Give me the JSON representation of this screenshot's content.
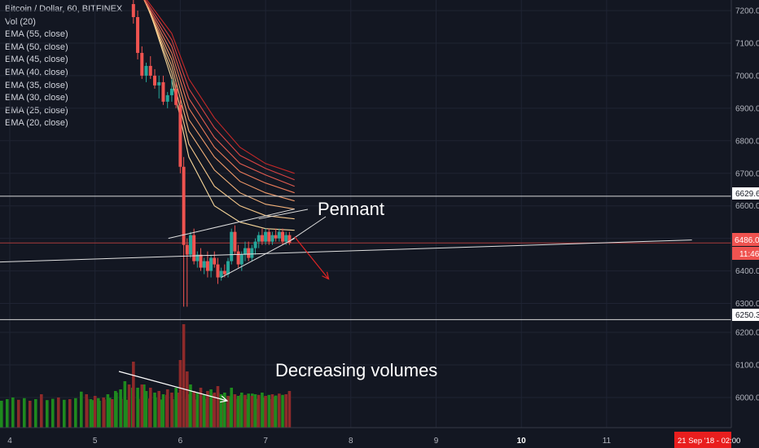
{
  "legend": {
    "title": "Bitcoin / Dollar, 60, BITFINEX",
    "vol": "Vol (20)",
    "emas": [
      "EMA (55, close)",
      "EMA (50, close)",
      "EMA (45, close)",
      "EMA (40, close)",
      "EMA (35, close)",
      "EMA (30, close)",
      "EMA (25, close)",
      "EMA (20, close)"
    ]
  },
  "annotations": {
    "pennant": "Pennant",
    "volumes": "Decreasing volumes"
  },
  "badges": {
    "level_upper": "6629.6",
    "price": "6486.0",
    "countdown": "11:46",
    "level_lower": "6250.3",
    "date": "21 Sep '18 - 02:00"
  },
  "colors": {
    "background": "#131722",
    "up": "#26a69a",
    "down": "#ef5350",
    "vol_up": "#1e8a1e",
    "vol_down": "#8e2a2a",
    "price_badge": "#ef5350",
    "date_badge": "#e91e1e"
  },
  "chart_data": {
    "type": "candlestick",
    "symbol": "Bitcoin / Dollar, 60, BITFINEX",
    "x_ticks": [
      "4",
      "5",
      "6",
      "7",
      "8",
      "9",
      "10",
      "11"
    ],
    "x_tick_values": [
      4,
      5,
      6,
      7,
      8,
      9,
      10,
      11
    ],
    "price_ticks": [
      7200,
      7100,
      7000,
      6900,
      6800,
      6700,
      6600,
      6500,
      6400,
      6300
    ],
    "price_tick_labels": [
      "7200.0",
      "7100.0",
      "7000.0",
      "6900.0",
      "6800.0",
      "6700.0",
      "6600.0",
      "6500.0",
      "6400.0",
      "6300.0"
    ],
    "volume_ticks": [
      6200,
      6100,
      6000
    ],
    "volume_tick_labels": [
      "6200.0",
      "6100.0",
      "6000.0"
    ],
    "horizontal_levels": [
      6629.6,
      6486.0,
      6250.3
    ],
    "ema_periods": [
      55,
      50,
      45,
      40,
      35,
      30,
      25,
      20
    ],
    "ema_colors": [
      "#c62828",
      "#d84343",
      "#e35c50",
      "#ea7a5a",
      "#f09a6a",
      "#f3b27a",
      "#f5c78a",
      "#f7d79a"
    ],
    "ema_start": [
      [
        [
          5.5,
          7270
        ],
        [
          5.9,
          7130
        ],
        [
          6.1,
          6990
        ],
        [
          6.4,
          6870
        ],
        [
          6.7,
          6780
        ],
        [
          7.0,
          6730
        ],
        [
          7.34,
          6700
        ]
      ],
      [
        [
          5.52,
          7260
        ],
        [
          5.9,
          7110
        ],
        [
          6.1,
          6960
        ],
        [
          6.4,
          6840
        ],
        [
          6.7,
          6755
        ],
        [
          7.0,
          6715
        ],
        [
          7.34,
          6680
        ]
      ],
      [
        [
          5.54,
          7250
        ],
        [
          5.9,
          7090
        ],
        [
          6.1,
          6930
        ],
        [
          6.4,
          6810
        ],
        [
          6.7,
          6730
        ],
        [
          7.0,
          6695
        ],
        [
          7.34,
          6660
        ]
      ],
      [
        [
          5.56,
          7240
        ],
        [
          5.9,
          7070
        ],
        [
          6.1,
          6900
        ],
        [
          6.4,
          6780
        ],
        [
          6.7,
          6705
        ],
        [
          7.0,
          6670
        ],
        [
          7.34,
          6640
        ]
      ],
      [
        [
          5.58,
          7230
        ],
        [
          5.9,
          7050
        ],
        [
          6.1,
          6865
        ],
        [
          6.4,
          6750
        ],
        [
          6.7,
          6675
        ],
        [
          7.0,
          6640
        ],
        [
          7.34,
          6615
        ]
      ],
      [
        [
          5.6,
          7220
        ],
        [
          5.9,
          7030
        ],
        [
          6.1,
          6830
        ],
        [
          6.4,
          6710
        ],
        [
          6.7,
          6640
        ],
        [
          7.0,
          6605
        ],
        [
          7.34,
          6590
        ]
      ],
      [
        [
          5.62,
          7210
        ],
        [
          5.9,
          7010
        ],
        [
          6.1,
          6790
        ],
        [
          6.4,
          6660
        ],
        [
          6.7,
          6600
        ],
        [
          7.0,
          6570
        ],
        [
          7.34,
          6560
        ]
      ],
      [
        [
          5.64,
          7200
        ],
        [
          5.9,
          6990
        ],
        [
          6.1,
          6750
        ],
        [
          6.4,
          6600
        ],
        [
          6.7,
          6550
        ],
        [
          7.0,
          6530
        ],
        [
          7.34,
          6525
        ]
      ]
    ],
    "candles": [
      [
        5.45,
        7220,
        7250,
        7160,
        7180
      ],
      [
        5.5,
        7180,
        7200,
        7050,
        7070
      ],
      [
        5.55,
        7070,
        7090,
        6990,
        7000
      ],
      [
        5.6,
        7000,
        7040,
        6980,
        7030
      ],
      [
        5.65,
        7030,
        7060,
        6990,
        7000
      ],
      [
        5.7,
        7000,
        7020,
        6960,
        6970
      ],
      [
        5.75,
        6970,
        7000,
        6930,
        6980
      ],
      [
        5.8,
        6980,
        7000,
        6910,
        6920
      ],
      [
        5.85,
        6920,
        6950,
        6900,
        6940
      ],
      [
        5.9,
        6940,
        6990,
        6920,
        6960
      ],
      [
        5.95,
        6960,
        6980,
        6900,
        6910
      ],
      [
        6.0,
        6910,
        6930,
        6700,
        6720
      ],
      [
        6.04,
        6720,
        6750,
        6290,
        6480
      ],
      [
        6.08,
        6480,
        6500,
        6290,
        6450
      ],
      [
        6.12,
        6450,
        6520,
        6440,
        6510
      ],
      [
        6.16,
        6510,
        6530,
        6420,
        6430
      ],
      [
        6.2,
        6430,
        6460,
        6410,
        6450
      ],
      [
        6.24,
        6450,
        6470,
        6400,
        6410
      ],
      [
        6.28,
        6410,
        6440,
        6390,
        6430
      ],
      [
        6.32,
        6430,
        6460,
        6380,
        6400
      ],
      [
        6.36,
        6400,
        6450,
        6380,
        6440
      ],
      [
        6.4,
        6440,
        6460,
        6410,
        6420
      ],
      [
        6.44,
        6420,
        6440,
        6360,
        6380
      ],
      [
        6.48,
        6380,
        6410,
        6370,
        6400
      ],
      [
        6.52,
        6400,
        6420,
        6380,
        6390
      ],
      [
        6.56,
        6390,
        6440,
        6380,
        6430
      ],
      [
        6.6,
        6430,
        6530,
        6420,
        6520
      ],
      [
        6.64,
        6520,
        6540,
        6450,
        6460
      ],
      [
        6.68,
        6460,
        6480,
        6410,
        6420
      ],
      [
        6.72,
        6420,
        6460,
        6400,
        6450
      ],
      [
        6.76,
        6450,
        6490,
        6430,
        6470
      ],
      [
        6.8,
        6470,
        6490,
        6430,
        6440
      ],
      [
        6.84,
        6440,
        6480,
        6430,
        6470
      ],
      [
        6.88,
        6470,
        6500,
        6450,
        6490
      ],
      [
        6.92,
        6490,
        6520,
        6470,
        6510
      ],
      [
        6.96,
        6510,
        6530,
        6480,
        6490
      ],
      [
        7.0,
        6490,
        6530,
        6480,
        6520
      ],
      [
        7.04,
        6520,
        6530,
        6480,
        6490
      ],
      [
        7.08,
        6490,
        6520,
        6480,
        6510
      ],
      [
        7.12,
        6510,
        6530,
        6490,
        6500
      ],
      [
        7.16,
        6500,
        6530,
        6490,
        6520
      ],
      [
        7.2,
        6520,
        6530,
        6480,
        6490
      ],
      [
        7.24,
        6490,
        6520,
        6480,
        6510
      ],
      [
        7.28,
        6510,
        6520,
        6480,
        6486
      ]
    ],
    "volumes": [
      [
        4.9,
        6010,
        0
      ],
      [
        4.95,
        5995,
        1
      ],
      [
        5.0,
        6005,
        0
      ],
      [
        5.05,
        5990,
        1
      ],
      [
        5.1,
        6000,
        0
      ],
      [
        5.15,
        6010,
        1
      ],
      [
        5.2,
        5995,
        0
      ],
      [
        5.25,
        6015,
        1
      ],
      [
        5.3,
        6025,
        1
      ],
      [
        5.35,
        6050,
        1
      ],
      [
        5.4,
        6040,
        0
      ],
      [
        5.45,
        6110,
        0
      ],
      [
        5.5,
        6030,
        1
      ],
      [
        5.55,
        6040,
        0
      ],
      [
        5.6,
        6020,
        1
      ],
      [
        5.65,
        6030,
        0
      ],
      [
        5.7,
        6015,
        1
      ],
      [
        5.75,
        6020,
        0
      ],
      [
        5.8,
        6010,
        1
      ],
      [
        5.85,
        6025,
        0
      ],
      [
        5.9,
        6015,
        0
      ],
      [
        5.95,
        6030,
        1
      ],
      [
        6.0,
        6115,
        0
      ],
      [
        6.04,
        6225,
        0
      ],
      [
        6.08,
        6080,
        0
      ],
      [
        6.12,
        6040,
        1
      ],
      [
        6.16,
        6020,
        0
      ],
      [
        6.2,
        6015,
        1
      ],
      [
        6.24,
        6030,
        0
      ],
      [
        6.28,
        6010,
        1
      ],
      [
        6.32,
        6020,
        0
      ],
      [
        6.36,
        6025,
        1
      ],
      [
        6.4,
        6015,
        0
      ],
      [
        6.44,
        6035,
        0
      ],
      [
        6.48,
        6010,
        1
      ],
      [
        6.52,
        6015,
        1
      ],
      [
        6.56,
        6005,
        0
      ],
      [
        6.6,
        6030,
        1
      ],
      [
        6.64,
        6010,
        0
      ],
      [
        6.68,
        6005,
        1
      ],
      [
        6.72,
        6015,
        1
      ],
      [
        6.76,
        6008,
        0
      ],
      [
        6.8,
        6012,
        1
      ],
      [
        6.84,
        6005,
        0
      ],
      [
        6.88,
        6010,
        1
      ],
      [
        6.92,
        6008,
        0
      ],
      [
        6.96,
        6015,
        1
      ],
      [
        7.0,
        6005,
        0
      ],
      [
        7.04,
        6008,
        1
      ],
      [
        7.08,
        6010,
        0
      ],
      [
        7.12,
        6006,
        1
      ],
      [
        7.16,
        6012,
        0
      ],
      [
        7.2,
        6008,
        1
      ],
      [
        7.24,
        6010,
        0
      ],
      [
        7.28,
        6020,
        0
      ]
    ],
    "volume_scroll_left": [
      [
        0.0,
        5990,
        1
      ],
      [
        0.1,
        5995,
        1
      ],
      [
        0.2,
        6000,
        1
      ],
      [
        0.3,
        5993,
        0
      ],
      [
        0.4,
        5998,
        1
      ],
      [
        0.5,
        5990,
        0
      ],
      [
        0.6,
        5995,
        1
      ],
      [
        0.7,
        6010,
        0
      ],
      [
        0.8,
        5992,
        1
      ],
      [
        0.9,
        5996,
        1
      ],
      [
        1.0,
        6000,
        0
      ],
      [
        1.1,
        5993,
        1
      ],
      [
        1.2,
        5995,
        0
      ],
      [
        1.3,
        5998,
        1
      ],
      [
        1.4,
        6018,
        1
      ],
      [
        1.5,
        5996,
        0
      ],
      [
        1.6,
        5992,
        1
      ],
      [
        1.7,
        5998,
        1
      ],
      [
        1.8,
        5994,
        0
      ],
      [
        1.9,
        5999,
        1
      ],
      [
        2.0,
        6020,
        1
      ],
      [
        2.1,
        5996,
        0
      ],
      [
        2.2,
        5993,
        1
      ],
      [
        2.3,
        6030,
        1
      ],
      [
        2.4,
        5996,
        0
      ],
      [
        2.5,
        6040,
        1
      ],
      [
        2.6,
        5997,
        0
      ],
      [
        2.7,
        6000,
        1
      ],
      [
        2.8,
        5994,
        1
      ],
      [
        2.9,
        6008,
        0
      ],
      [
        3.0,
        5995,
        1
      ],
      [
        3.1,
        6015,
        0
      ],
      [
        3.2,
        5996,
        1
      ],
      [
        3.3,
        6010,
        1
      ],
      [
        3.4,
        5994,
        0
      ],
      [
        3.5,
        6005,
        1
      ],
      [
        3.6,
        5996,
        0
      ],
      [
        3.7,
        6010,
        0
      ],
      [
        3.8,
        6015,
        1
      ],
      [
        3.9,
        5996,
        0
      ],
      [
        4.0,
        6004,
        1
      ],
      [
        4.1,
        5996,
        1
      ],
      [
        4.2,
        6008,
        0
      ],
      [
        4.3,
        5995,
        1
      ],
      [
        4.4,
        6012,
        1
      ],
      [
        4.5,
        5996,
        0
      ],
      [
        4.6,
        6000,
        1
      ],
      [
        4.7,
        5995,
        0
      ],
      [
        4.8,
        6003,
        1
      ]
    ],
    "trendlines": [
      {
        "name": "pennant-upper",
        "points": [
          [
            5.86,
            6500
          ],
          [
            7.34,
            6590
          ]
        ]
      },
      {
        "name": "pennant-lower",
        "points": [
          [
            6.48,
            6380
          ],
          [
            7.34,
            6500
          ]
        ]
      },
      {
        "name": "long-support",
        "points": [
          [
            0.0,
            6395
          ],
          [
            12.0,
            6495
          ]
        ]
      }
    ],
    "arrows": [
      {
        "name": "breakdown-arrow",
        "from": [
          7.34,
          6505
        ],
        "to": [
          7.74,
          6375
        ]
      },
      {
        "name": "volume-arrow",
        "from": [
          5.28,
          6080
        ],
        "to": [
          6.55,
          5990
        ]
      }
    ]
  }
}
